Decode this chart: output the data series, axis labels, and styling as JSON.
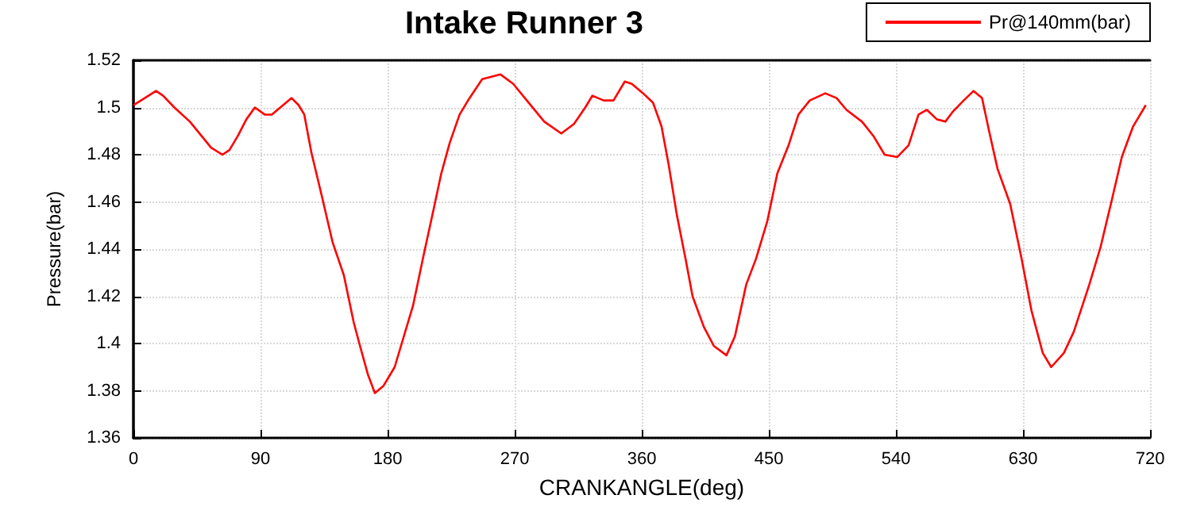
{
  "chart_data": {
    "type": "line",
    "title": "Intake Runner 3",
    "xlabel": "CRANKANGLE(deg)",
    "ylabel": "Pressure(bar)",
    "x": [
      0,
      16,
      21,
      29,
      40,
      55,
      63,
      68,
      74,
      80,
      86,
      93,
      98,
      106,
      112,
      117,
      121,
      126,
      134,
      141,
      149,
      156,
      160,
      166,
      171,
      177,
      185,
      190,
      198,
      205,
      213,
      218,
      224,
      231,
      237,
      247,
      260,
      269,
      280,
      291,
      303,
      312,
      320,
      325,
      333,
      340,
      348,
      353,
      361,
      368,
      374,
      379,
      385,
      391,
      396,
      404,
      411,
      420,
      426,
      434,
      441,
      449,
      456,
      464,
      471,
      479,
      490,
      498,
      505,
      516,
      524,
      532,
      541,
      549,
      556,
      562,
      569,
      575,
      580,
      588,
      595,
      601,
      606,
      612,
      621,
      629,
      636,
      644,
      650,
      659,
      666,
      677,
      685,
      693,
      700,
      708,
      717
    ],
    "series": [
      {
        "name": "Pr@140mm(bar)",
        "color": "#ff0000",
        "values": [
          1.501,
          1.507,
          1.505,
          1.5,
          1.494,
          1.483,
          1.48,
          1.482,
          1.488,
          1.495,
          1.5,
          1.497,
          1.497,
          1.501,
          1.504,
          1.501,
          1.497,
          1.481,
          1.461,
          1.443,
          1.429,
          1.409,
          1.4,
          1.387,
          1.379,
          1.382,
          1.39,
          1.4,
          1.416,
          1.436,
          1.458,
          1.472,
          1.485,
          1.497,
          1.503,
          1.512,
          1.514,
          1.51,
          1.502,
          1.494,
          1.489,
          1.493,
          1.5,
          1.505,
          1.503,
          1.503,
          1.511,
          1.51,
          1.506,
          1.502,
          1.492,
          1.476,
          1.454,
          1.436,
          1.42,
          1.407,
          1.399,
          1.395,
          1.403,
          1.425,
          1.436,
          1.452,
          1.472,
          1.484,
          1.497,
          1.503,
          1.506,
          1.504,
          1.499,
          1.494,
          1.488,
          1.48,
          1.479,
          1.484,
          1.497,
          1.499,
          1.495,
          1.494,
          1.498,
          1.503,
          1.507,
          1.504,
          1.49,
          1.474,
          1.459,
          1.436,
          1.414,
          1.396,
          1.39,
          1.396,
          1.405,
          1.425,
          1.441,
          1.461,
          1.479,
          1.492,
          1.501
        ]
      }
    ],
    "xlim": [
      0,
      720
    ],
    "xticks": [
      0,
      90,
      180,
      270,
      360,
      450,
      540,
      630,
      720
    ],
    "ylim": [
      1.36,
      1.52
    ],
    "yticks": [
      1.36,
      1.38,
      1.4,
      1.42,
      1.44,
      1.46,
      1.48,
      1.5,
      1.52
    ],
    "grid": true,
    "legend": "top right",
    "marker": "none",
    "line_style": "solid"
  }
}
